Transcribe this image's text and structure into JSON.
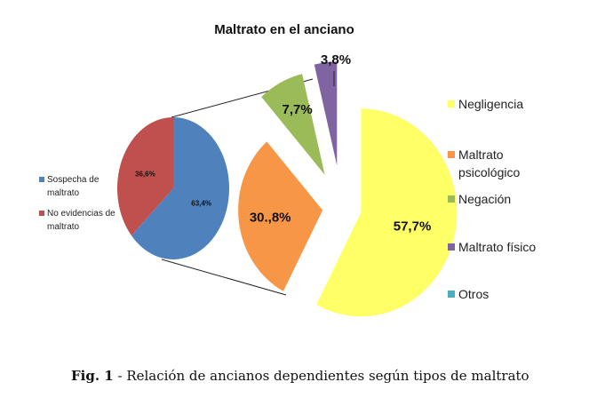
{
  "chart_data": {
    "type": "pie",
    "title": "Maltrato en el anciano",
    "main_pie": {
      "slices": [
        {
          "label": "Sospecha de maltrato",
          "value": 63.4,
          "data_label": "63,4%",
          "color": "#4F81BD"
        },
        {
          "label": "No evidencias de maltrato",
          "value": 36.6,
          "data_label": "36,6%",
          "color": "#C0504D"
        }
      ],
      "legend_position": "left"
    },
    "secondary_pie": {
      "slices": [
        {
          "label": "Negligencia",
          "value": 57.7,
          "data_label": "57,7%",
          "color": "#FFFF66"
        },
        {
          "label": "Maltrato psicológico",
          "value": 30.8,
          "data_label": "30.,8%",
          "color": "#F79646"
        },
        {
          "label": "Negación",
          "value": 7.7,
          "data_label": "7,7%",
          "color": "#9BBB59"
        },
        {
          "label": "Maltrato físico",
          "value": 3.8,
          "data_label": "3,8%",
          "color": "#8064A2"
        },
        {
          "label": "Otros",
          "value": 0,
          "data_label": "",
          "color": "#4BACC6"
        }
      ],
      "legend_position": "right"
    }
  },
  "caption": {
    "fig": "Fig. 1",
    "text": " -  Relación de ancianos dependientes según tipos de maltrato"
  }
}
